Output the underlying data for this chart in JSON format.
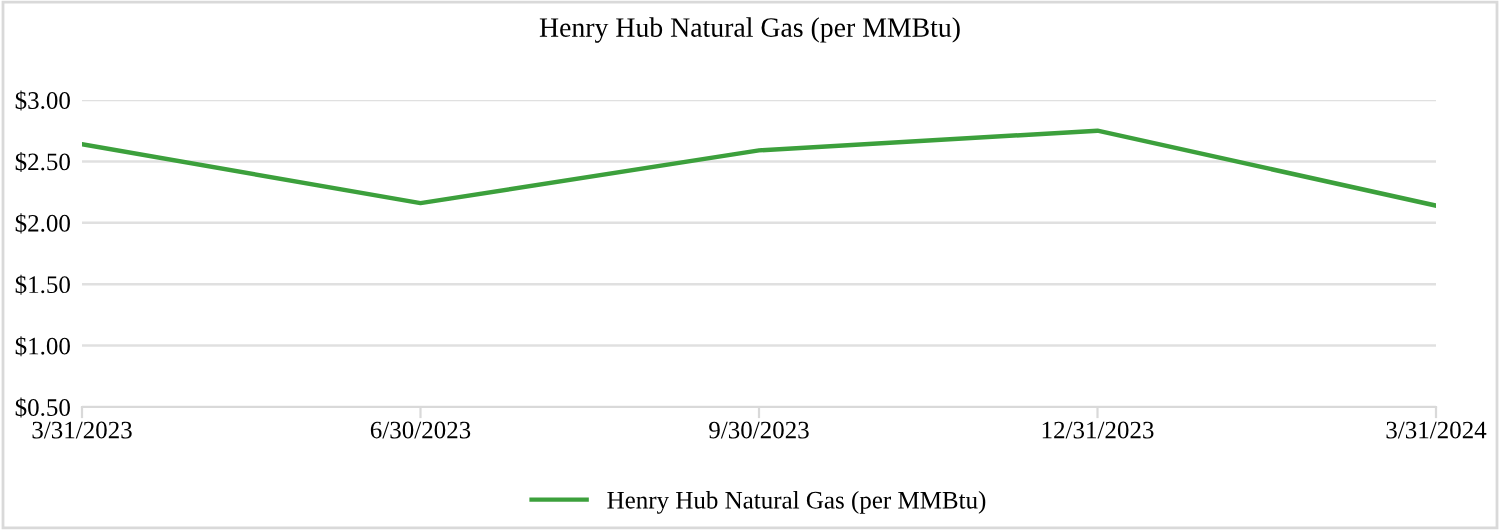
{
  "chart_data": {
    "type": "line",
    "title": "Henry Hub Natural Gas (per MMBtu)",
    "categories": [
      "3/31/2023",
      "6/30/2023",
      "9/30/2023",
      "12/31/2023",
      "3/31/2024"
    ],
    "series": [
      {
        "name": "Henry Hub Natural Gas (per MMBtu)",
        "color": "#3ca03c",
        "values": [
          2.64,
          2.16,
          2.59,
          2.75,
          2.14
        ]
      }
    ],
    "ylim": [
      0.5,
      3.0
    ],
    "yticks": [
      {
        "value": 0.5,
        "label": "$0.50"
      },
      {
        "value": 1.0,
        "label": "$1.00"
      },
      {
        "value": 1.5,
        "label": "$1.50"
      },
      {
        "value": 2.0,
        "label": "$2.00"
      },
      {
        "value": 2.5,
        "label": "$2.50"
      },
      {
        "value": 3.0,
        "label": "$3.00"
      }
    ],
    "grid": "y",
    "legend": "bottom",
    "marker": "none",
    "line_style": "solid"
  }
}
